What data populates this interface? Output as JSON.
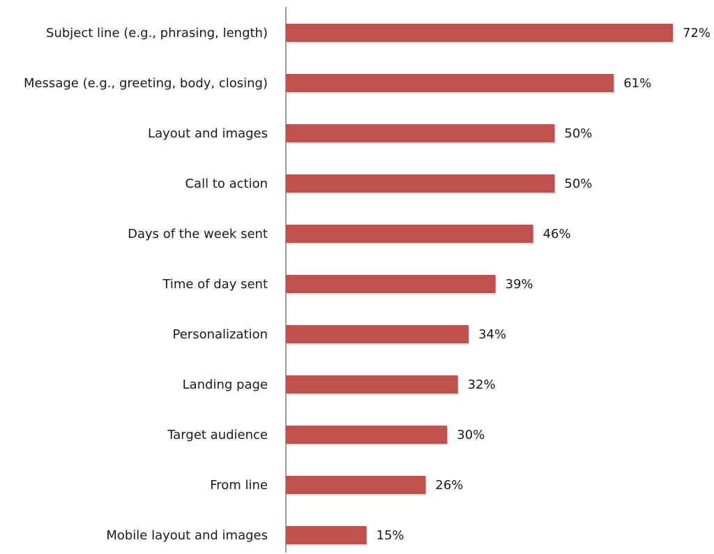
{
  "chart_data": {
    "type": "bar",
    "orientation": "horizontal",
    "categories": [
      "Subject line (e.g., phrasing, length)",
      "Message (e.g., greeting, body, closing)",
      "Layout and images",
      "Call to action",
      "Days of the week sent",
      "Time of day sent",
      "Personalization",
      "Landing page",
      "Target audience",
      "From line",
      "Mobile layout and images"
    ],
    "values": [
      72,
      61,
      50,
      50,
      46,
      39,
      34,
      32,
      30,
      26,
      15
    ],
    "value_labels": [
      "72%",
      "61%",
      "50%",
      "50%",
      "46%",
      "39%",
      "34%",
      "32%",
      "30%",
      "26%",
      "15%"
    ],
    "unit": "%",
    "xlim": [
      0,
      75
    ],
    "grid": false,
    "legend": "none",
    "bar_color": "#c0504d"
  }
}
